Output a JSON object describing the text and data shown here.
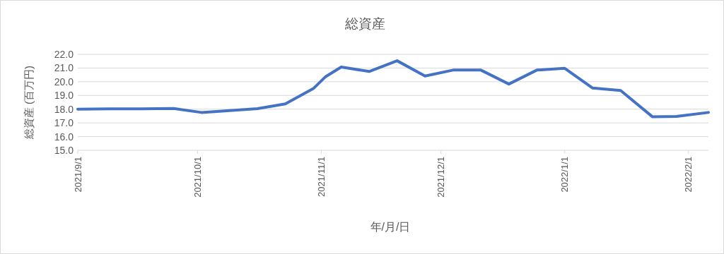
{
  "chart_data": {
    "type": "line",
    "title": "総資産",
    "xlabel": "年/月/日",
    "ylabel": "総資産 (百万円)",
    "color": "#4472c4",
    "grid": "y",
    "x": [
      "2021-09-01",
      "2021-09-09",
      "2021-09-17",
      "2021-09-25",
      "2021-10-02",
      "2021-10-09",
      "2021-10-16",
      "2021-10-23",
      "2021-10-30",
      "2021-11-02",
      "2021-11-06",
      "2021-11-13",
      "2021-11-20",
      "2021-11-27",
      "2021-12-04",
      "2021-12-11",
      "2021-12-18",
      "2021-12-25",
      "2022-01-01",
      "2022-01-08",
      "2022-01-15",
      "2022-01-23",
      "2022-01-29",
      "2022-02-06"
    ],
    "values": [
      18.0,
      18.02,
      18.03,
      18.05,
      17.76,
      17.9,
      18.04,
      18.38,
      19.5,
      20.35,
      21.07,
      20.75,
      21.53,
      20.42,
      20.85,
      20.85,
      19.83,
      20.85,
      20.98,
      19.54,
      19.36,
      17.44,
      17.47,
      17.76
    ],
    "xlim": [
      "2021-09-01",
      "2022-02-06"
    ],
    "xticks": [
      {
        "value": "2021-09-01",
        "label": "2021/9/1"
      },
      {
        "value": "2021-10-01",
        "label": "2021/10/1"
      },
      {
        "value": "2021-11-01",
        "label": "2021/11/1"
      },
      {
        "value": "2021-12-01",
        "label": "2021/12/1"
      },
      {
        "value": "2022-01-01",
        "label": "2022/1/1"
      },
      {
        "value": "2022-02-01",
        "label": "2022/2/1"
      }
    ],
    "ylim": [
      15,
      22
    ],
    "yticks": [
      {
        "value": 15,
        "label": "15.0"
      },
      {
        "value": 16,
        "label": "16.0"
      },
      {
        "value": 17,
        "label": "17.0"
      },
      {
        "value": 18,
        "label": "18.0"
      },
      {
        "value": 19,
        "label": "19.0"
      },
      {
        "value": 20,
        "label": "20.0"
      },
      {
        "value": 21,
        "label": "21.0"
      },
      {
        "value": 22,
        "label": "22.0"
      }
    ]
  }
}
